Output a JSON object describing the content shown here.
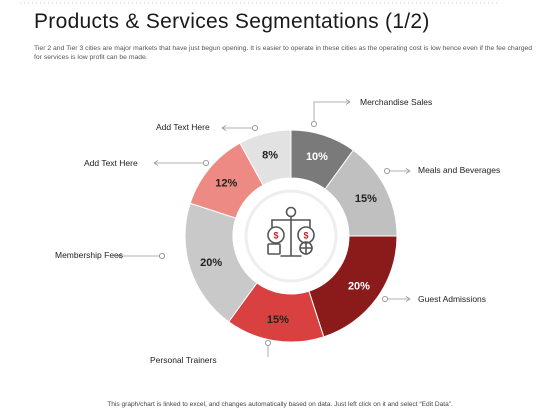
{
  "header": {
    "title": "Products & Services Segmentations (1/2)",
    "subtitle": "Tier 2 and Tier 3 cities are major markets that have just begun opening. It is easier to operate in these cities as the operating cost is low hence even if the fee charged for services is low profit can be made."
  },
  "footer": {
    "note": "This graph/chart is linked to excel, and changes automatically based on data. Just left click on it and select “Edit Data”."
  },
  "center_icon": "balance-scale-money-icon",
  "chart_data": {
    "type": "pie",
    "donut": true,
    "title": "",
    "slices": [
      {
        "label": "Merchandise Sales",
        "value": 10,
        "display": "10%",
        "color": "#7a7a7a",
        "text_color": "#ffffff"
      },
      {
        "label": "Meals and Beverages",
        "value": 15,
        "display": "15%",
        "color": "#c0c0c0",
        "text_color": "#222222"
      },
      {
        "label": "Guest Admissions",
        "value": 20,
        "display": "20%",
        "color": "#8b1a1a",
        "text_color": "#ffffff"
      },
      {
        "label": "Personal Trainers",
        "value": 15,
        "display": "15%",
        "color": "#d94040",
        "text_color": "#222222"
      },
      {
        "label": "Membership Fees",
        "value": 20,
        "display": "20%",
        "color": "#c9c9c9",
        "text_color": "#222222"
      },
      {
        "label": "Add Text Here",
        "value": 12,
        "display": "12%",
        "color": "#ee8a84",
        "text_color": "#222222"
      },
      {
        "label": "Add Text Here",
        "value": 8,
        "display": "8%",
        "color": "#e2e2e2",
        "text_color": "#222222"
      }
    ]
  }
}
